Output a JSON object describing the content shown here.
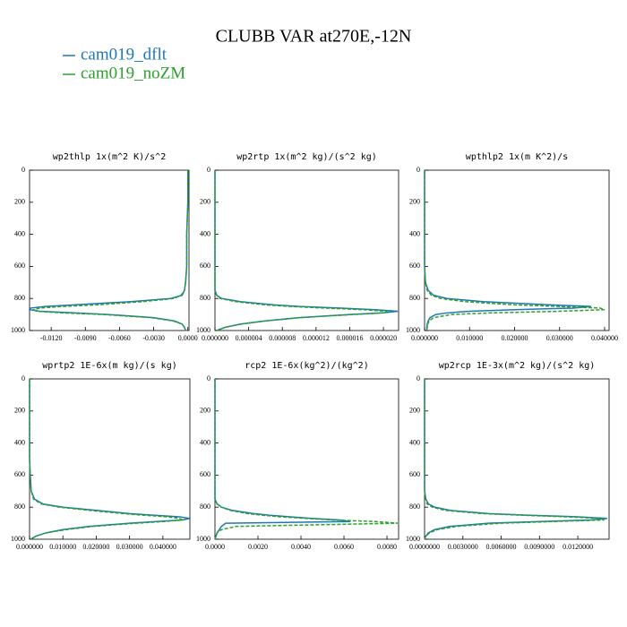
{
  "title": "CLUBB VAR at270E,-12N",
  "legend": [
    {
      "name": "cam019_dflt",
      "color": "#1f77b4",
      "dash": false
    },
    {
      "name": "cam019_noZM",
      "color": "#2ca02c",
      "dash": true
    }
  ],
  "chart_data": [
    {
      "type": "line",
      "title": "wp2thlp  1x(m^2 K)/s^2",
      "y": [
        0,
        100,
        200,
        300,
        400,
        500,
        600,
        700,
        750,
        780,
        800,
        820,
        840,
        850,
        860,
        870,
        880,
        890,
        900,
        920,
        940,
        960,
        980,
        1000
      ],
      "ylim": [
        0,
        1000
      ],
      "yticks": [
        0,
        200,
        400,
        600,
        800,
        1000
      ],
      "y_reversed": true,
      "xlim": [
        -0.0139,
        0.0001
      ],
      "xticks": [
        {
          "value": -0.012,
          "label": "-0.0120"
        },
        {
          "value": -0.009,
          "label": "-0.0090"
        },
        {
          "value": -0.006,
          "label": "-0.0060"
        },
        {
          "value": -0.003,
          "label": "-0.0030"
        },
        {
          "value": 0,
          "label": "0.0000"
        }
      ],
      "series": [
        {
          "values": [
            0,
            0,
            0,
            -5e-05,
            -0.0001,
            -0.0001,
            -0.0001,
            -0.0002,
            -0.0003,
            -0.0005,
            -0.0015,
            -0.005,
            -0.01,
            -0.0125,
            -0.0138,
            -0.0139,
            -0.013,
            -0.01,
            -0.007,
            -0.003,
            -0.0012,
            -0.0005,
            -0.0003,
            -0.0002
          ]
        },
        {
          "values": [
            0,
            0,
            0,
            -5e-05,
            -0.0001,
            -0.0001,
            -0.0001,
            -0.0002,
            -0.0003,
            -0.0006,
            -0.0012,
            -0.004,
            -0.008,
            -0.011,
            -0.013,
            -0.0135,
            -0.0133,
            -0.011,
            -0.0075,
            -0.0032,
            -0.0013,
            -0.0005,
            -0.0003,
            -0.0002
          ]
        }
      ]
    },
    {
      "type": "line",
      "title": "wp2rtp  1x(m^2 kg)/(s^2 kg)",
      "y": [
        0,
        100,
        200,
        300,
        400,
        500,
        600,
        700,
        750,
        780,
        800,
        820,
        840,
        850,
        860,
        870,
        880,
        890,
        900,
        920,
        940,
        960,
        980,
        1000
      ],
      "ylim": [
        0,
        1000
      ],
      "yticks": [
        0,
        200,
        400,
        600,
        800,
        1000
      ],
      "y_reversed": true,
      "xlim": [
        0,
        2.18e-05
      ],
      "xticks": [
        {
          "value": 0,
          "label": "0.000000"
        },
        {
          "value": 4e-06,
          "label": "0.000004"
        },
        {
          "value": 8e-06,
          "label": "0.000008"
        },
        {
          "value": 1.2e-05,
          "label": "0.000012"
        },
        {
          "value": 1.6e-05,
          "label": "0.000016"
        },
        {
          "value": 2e-05,
          "label": "0.000020"
        }
      ],
      "series": [
        {
          "values": [
            0,
            0,
            0,
            0,
            0,
            0,
            0,
            0,
            0,
            2e-07,
            8e-07,
            3e-06,
            7e-06,
            1e-05,
            1.5e-05,
            1.9e-05,
            2.17e-05,
            2e-05,
            1.6e-05,
            1e-05,
            6e-06,
            3e-06,
            1.2e-06,
            2e-07
          ]
        },
        {
          "values": [
            0,
            0,
            0,
            0,
            0,
            0,
            0,
            0,
            0,
            2e-07,
            6e-07,
            2.5e-06,
            6e-06,
            9e-06,
            1.3e-05,
            1.75e-05,
            2.05e-05,
            2e-05,
            1.65e-05,
            1e-05,
            6e-06,
            3e-06,
            1.2e-06,
            2e-07
          ]
        }
      ]
    },
    {
      "type": "line",
      "title": "wpthlp2  1x(m K^2)/s",
      "y": [
        0,
        100,
        200,
        300,
        400,
        500,
        600,
        700,
        750,
        780,
        800,
        820,
        840,
        850,
        860,
        870,
        880,
        890,
        900,
        920,
        940,
        960,
        980,
        1000
      ],
      "ylim": [
        0,
        1000
      ],
      "yticks": [
        0,
        200,
        400,
        600,
        800,
        1000
      ],
      "y_reversed": true,
      "xlim": [
        0,
        0.041
      ],
      "xticks": [
        {
          "value": 0,
          "label": "0.000000"
        },
        {
          "value": 0.01,
          "label": "0.010000"
        },
        {
          "value": 0.02,
          "label": "0.020000"
        },
        {
          "value": 0.03,
          "label": "0.030000"
        },
        {
          "value": 0.04,
          "label": "0.040000"
        }
      ],
      "series": [
        {
          "values": [
            0,
            0,
            0,
            0,
            0,
            0,
            0,
            0.0002,
            0.0008,
            0.002,
            0.005,
            0.013,
            0.028,
            0.037,
            0.033,
            0.02,
            0.01,
            0.005,
            0.0025,
            0.0012,
            0.0008,
            0.0006,
            0.0005,
            0.0005
          ]
        },
        {
          "values": [
            0,
            0,
            0,
            0,
            0,
            0,
            0,
            0.0002,
            0.0006,
            0.0015,
            0.0035,
            0.009,
            0.02,
            0.03,
            0.039,
            0.04,
            0.03,
            0.015,
            0.006,
            0.002,
            0.001,
            0.0007,
            0.0006,
            0.0005
          ]
        }
      ]
    },
    {
      "type": "line",
      "title": "wprtp2  1E-6x(m kg)/(s kg)",
      "y": [
        0,
        100,
        200,
        300,
        400,
        500,
        600,
        700,
        750,
        780,
        800,
        820,
        840,
        850,
        860,
        870,
        880,
        890,
        900,
        920,
        940,
        960,
        980,
        1000
      ],
      "ylim": [
        0,
        1000
      ],
      "yticks": [
        0,
        200,
        400,
        600,
        800,
        1000
      ],
      "y_reversed": true,
      "xlim": [
        0,
        0.0481
      ],
      "xticks": [
        {
          "value": 0,
          "label": "0.000000"
        },
        {
          "value": 0.01,
          "label": "0.010000"
        },
        {
          "value": 0.02,
          "label": "0.020000"
        },
        {
          "value": 0.03,
          "label": "0.030000"
        },
        {
          "value": 0.04,
          "label": "0.040000"
        }
      ],
      "series": [
        {
          "values": [
            0,
            0,
            0,
            0,
            0,
            0,
            0.0002,
            0.0005,
            0.0015,
            0.004,
            0.01,
            0.02,
            0.03,
            0.037,
            0.045,
            0.048,
            0.046,
            0.038,
            0.03,
            0.018,
            0.01,
            0.005,
            0.002,
            0.0003
          ]
        },
        {
          "values": [
            0,
            0,
            0,
            0,
            0,
            0,
            0.0002,
            0.0005,
            0.0012,
            0.0035,
            0.009,
            0.018,
            0.028,
            0.034,
            0.041,
            0.045,
            0.046,
            0.04,
            0.032,
            0.019,
            0.011,
            0.005,
            0.002,
            0.0003
          ]
        }
      ]
    },
    {
      "type": "line",
      "title": "rcp2  1E-6x(kg^2)/(kg^2)",
      "y": [
        0,
        100,
        200,
        300,
        400,
        500,
        600,
        700,
        750,
        780,
        800,
        820,
        840,
        850,
        860,
        870,
        880,
        890,
        900,
        920,
        940,
        960,
        980,
        1000
      ],
      "ylim": [
        0,
        1000
      ],
      "yticks": [
        0,
        200,
        400,
        600,
        800,
        1000
      ],
      "y_reversed": true,
      "xlim": [
        0,
        0.00854
      ],
      "xticks": [
        {
          "value": 0,
          "label": "0.0000"
        },
        {
          "value": 0.002,
          "label": "0.0020"
        },
        {
          "value": 0.004,
          "label": "0.0040"
        },
        {
          "value": 0.006,
          "label": "0.0060"
        },
        {
          "value": 0.008,
          "label": "0.0080"
        }
      ],
      "series": [
        {
          "values": [
            0,
            0,
            0,
            0,
            0,
            0,
            0,
            0,
            0,
            0.0001,
            0.0003,
            0.0008,
            0.0018,
            0.0025,
            0.0035,
            0.0045,
            0.0058,
            0.0063,
            0.0005,
            0.0003,
            0.0002,
            0.0001,
            5e-05,
            0
          ]
        },
        {
          "values": [
            0,
            0,
            0,
            0,
            0,
            0,
            0,
            0,
            0,
            0.0001,
            0.0003,
            0.0007,
            0.0015,
            0.0022,
            0.003,
            0.0042,
            0.0055,
            0.0075,
            0.0085,
            0.001,
            0.0003,
            0.0001,
            5e-05,
            0
          ]
        }
      ]
    },
    {
      "type": "line",
      "title": "wp2rcp  1E-3x(m^2 kg)/(s^2 kg)",
      "y": [
        0,
        100,
        200,
        300,
        400,
        500,
        600,
        700,
        750,
        780,
        800,
        820,
        840,
        850,
        860,
        870,
        880,
        890,
        900,
        920,
        940,
        960,
        980,
        1000
      ],
      "ylim": [
        0,
        1000
      ],
      "yticks": [
        0,
        200,
        400,
        600,
        800,
        1000
      ],
      "y_reversed": true,
      "xlim": [
        0,
        0.01445
      ],
      "xticks": [
        {
          "value": 0,
          "label": "0.0000000"
        },
        {
          "value": 0.003,
          "label": "0.0030000"
        },
        {
          "value": 0.006,
          "label": "0.0060000"
        },
        {
          "value": 0.009,
          "label": "0.0090000"
        },
        {
          "value": 0.012,
          "label": "0.0120000"
        }
      ],
      "series": [
        {
          "values": [
            0,
            0,
            0,
            0,
            0,
            0,
            0,
            0,
            0.0001,
            0.0003,
            0.0008,
            0.002,
            0.005,
            0.008,
            0.012,
            0.0143,
            0.013,
            0.009,
            0.005,
            0.002,
            0.0008,
            0.0003,
            0.0001,
            0
          ]
        },
        {
          "values": [
            0,
            0,
            0,
            0,
            0,
            0,
            0,
            0,
            0.0001,
            0.0002,
            0.0006,
            0.0016,
            0.0045,
            0.0075,
            0.011,
            0.0138,
            0.014,
            0.01,
            0.006,
            0.0025,
            0.001,
            0.0004,
            0.0001,
            0
          ]
        }
      ]
    }
  ]
}
